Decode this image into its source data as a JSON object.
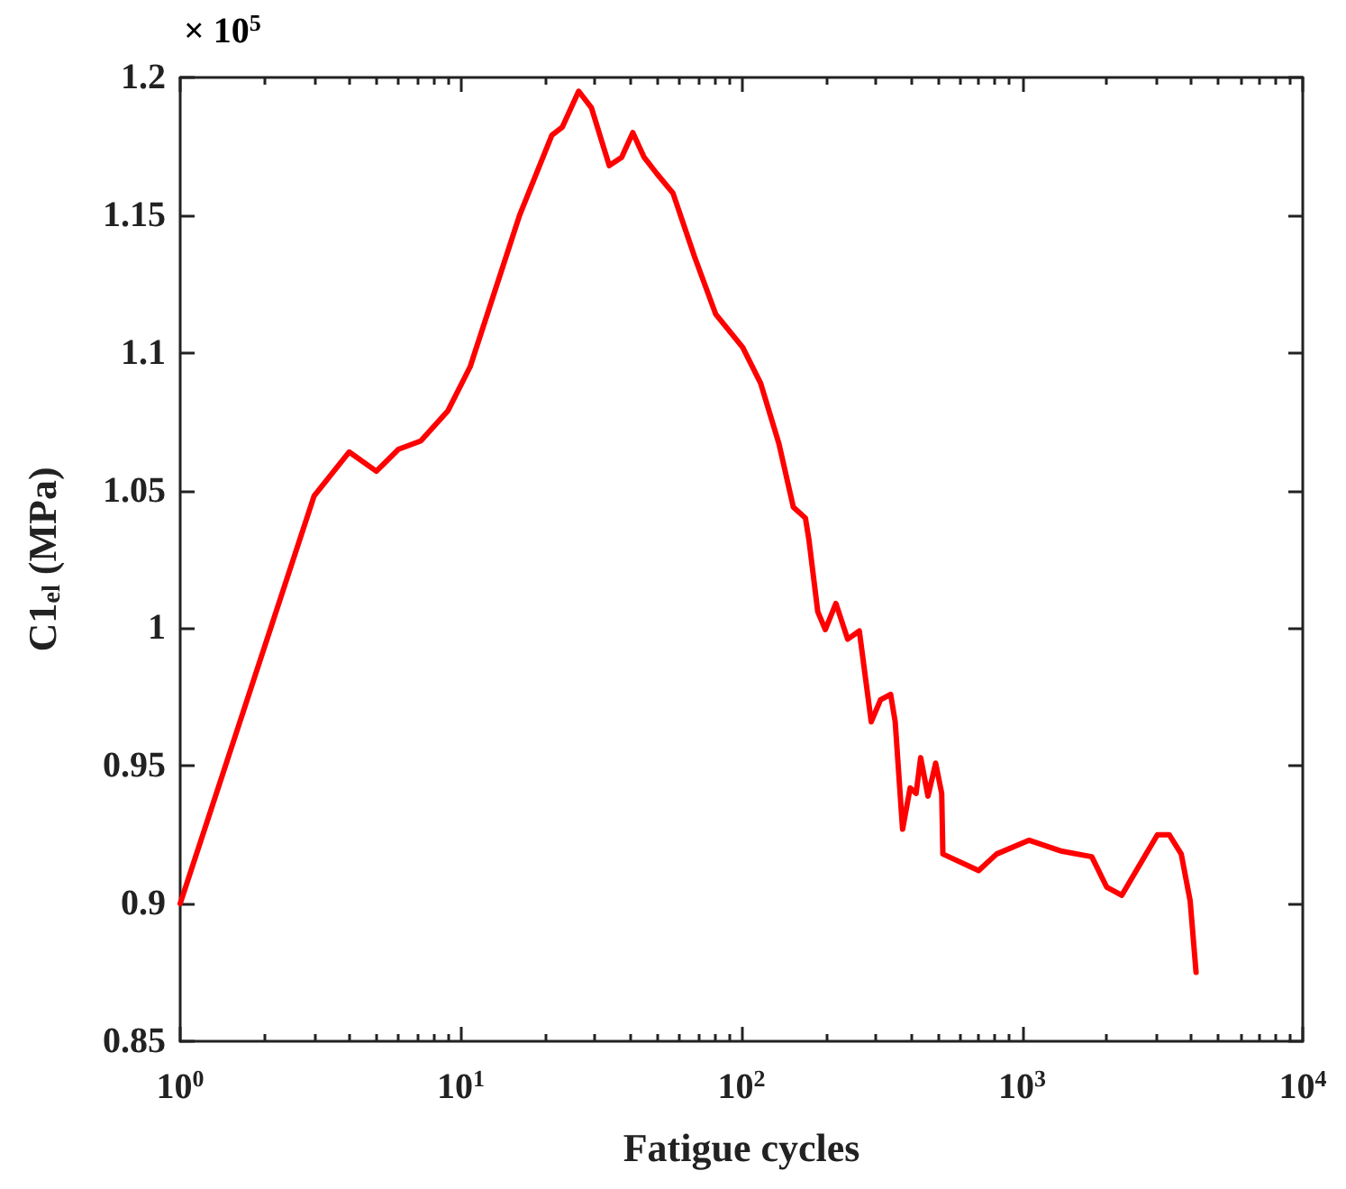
{
  "chart_data": {
    "type": "line",
    "xlabel": "Fatigue cycles",
    "ylabel": "C1$_{el}$ (MPa)",
    "annotations": [
      "× 10$^{5}$"
    ],
    "log": "x",
    "xlim": [
      1,
      10000
    ],
    "xticks": [
      {
        "value": 1,
        "label": "10$^{0}$"
      },
      {
        "value": 10,
        "label": "10$^{1}$"
      },
      {
        "value": 100,
        "label": "10$^{2}$"
      },
      {
        "value": 1000,
        "label": "10$^{3}$"
      },
      {
        "value": 10000,
        "label": "10$^{4}$"
      }
    ],
    "ylim": [
      0.85,
      1.2
    ],
    "yticks": [
      0.85,
      0.9,
      0.95,
      1,
      1.05,
      1.1,
      1.15,
      1.2
    ],
    "grid": false,
    "marker": "none",
    "line_style": "solid",
    "series": [
      {
        "color": "#ff0000",
        "x": [
          1,
          3,
          4,
          5,
          6,
          7.2,
          9,
          10.8,
          16.2,
          21.1,
          23,
          26.3,
          29.2,
          33.8,
          37.4,
          41,
          45,
          50,
          57,
          68,
          81,
          101,
          117,
          136,
          153,
          169,
          174,
          187,
          199,
          217,
          239,
          263,
          290,
          313,
          340,
          353,
          375,
          399,
          419,
          435,
          462,
          492,
          517,
          522,
          700,
          811,
          1060,
          1387,
          1771,
          2001,
          2264,
          3035,
          3345,
          3690,
          3970,
          4167
        ],
        "values": [
          0.9,
          1.048,
          1.064,
          1.057,
          1.065,
          1.068,
          1.079,
          1.095,
          1.15,
          1.179,
          1.182,
          1.195,
          1.189,
          1.168,
          1.171,
          1.18,
          1.171,
          1.165,
          1.158,
          1.135,
          1.114,
          1.102,
          1.089,
          1.067,
          1.044,
          1.04,
          1.032,
          1.006,
          0.9995,
          1.009,
          0.996,
          0.999,
          0.966,
          0.974,
          0.976,
          0.966,
          0.927,
          0.942,
          0.94,
          0.953,
          0.939,
          0.951,
          0.94,
          0.918,
          0.912,
          0.918,
          0.923,
          0.919,
          0.917,
          0.906,
          0.903,
          0.925,
          0.925,
          0.918,
          0.901,
          0.875
        ]
      }
    ]
  }
}
